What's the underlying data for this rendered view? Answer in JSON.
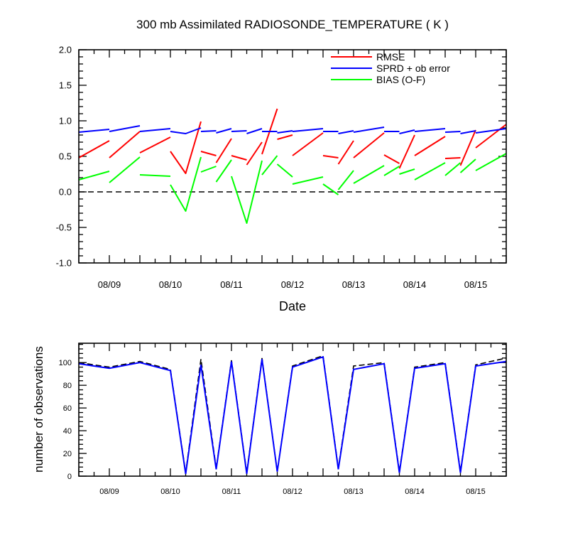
{
  "chart_data": [
    {
      "type": "line",
      "title": "300 mb Assimilated RADIOSONDE_TEMPERATURE ( K )",
      "xlabel": "Date",
      "ylabel": "",
      "xlim": [
        8.5,
        15.5
      ],
      "ylim": [
        -1.0,
        2.0
      ],
      "yticks": [
        -1.0,
        -0.5,
        0.0,
        0.5,
        1.0,
        1.5,
        2.0
      ],
      "ytick_labels": [
        "-1.0",
        "-0.5",
        "0.0",
        "0.5",
        "1.0",
        "1.5",
        "2.0"
      ],
      "xticks": [
        9,
        10,
        11,
        12,
        13,
        14,
        15
      ],
      "xtick_labels": [
        "08/09",
        "08/10",
        "08/11",
        "08/12",
        "08/13",
        "08/14",
        "08/15"
      ],
      "reference_line": {
        "y": 0,
        "style": "dashed"
      },
      "legend_position": "top-right",
      "series": [
        {
          "name": "RMSE",
          "color": "#ff0000",
          "segments": [
            [
              [
                8.5,
                0.48
              ],
              [
                9.0,
                0.72
              ]
            ],
            [
              [
                9.0,
                0.48
              ],
              [
                9.5,
                0.85
              ]
            ],
            [
              [
                9.5,
                0.55
              ],
              [
                10.0,
                0.77
              ]
            ],
            [
              [
                10.0,
                0.57
              ],
              [
                10.25,
                0.26
              ],
              [
                10.5,
                0.99
              ]
            ],
            [
              [
                10.5,
                0.57
              ],
              [
                10.75,
                0.51
              ]
            ],
            [
              [
                10.75,
                0.41
              ],
              [
                11.0,
                0.75
              ]
            ],
            [
              [
                11.0,
                0.51
              ],
              [
                11.25,
                0.45
              ]
            ],
            [
              [
                11.25,
                0.38
              ],
              [
                11.5,
                0.7
              ]
            ],
            [
              [
                11.5,
                0.53
              ],
              [
                11.75,
                1.17
              ]
            ],
            [
              [
                11.75,
                0.74
              ],
              [
                12.0,
                0.8
              ]
            ],
            [
              [
                12.0,
                0.51
              ],
              [
                12.5,
                0.83
              ]
            ],
            [
              [
                12.5,
                0.51
              ],
              [
                12.75,
                0.48
              ]
            ],
            [
              [
                12.75,
                0.39
              ],
              [
                13.0,
                0.72
              ]
            ],
            [
              [
                13.0,
                0.48
              ],
              [
                13.5,
                0.83
              ]
            ],
            [
              [
                13.5,
                0.52
              ],
              [
                13.75,
                0.4
              ]
            ],
            [
              [
                13.75,
                0.33
              ],
              [
                14.0,
                0.8
              ]
            ],
            [
              [
                14.0,
                0.51
              ],
              [
                14.5,
                0.78
              ]
            ],
            [
              [
                14.5,
                0.47
              ],
              [
                14.75,
                0.48
              ]
            ],
            [
              [
                14.75,
                0.37
              ],
              [
                15.0,
                0.87
              ]
            ],
            [
              [
                15.0,
                0.62
              ],
              [
                15.5,
                0.95
              ]
            ]
          ]
        },
        {
          "name": "SPRD + ob error",
          "color": "#0000ff",
          "segments": [
            [
              [
                8.5,
                0.84
              ],
              [
                9.0,
                0.88
              ]
            ],
            [
              [
                9.0,
                0.85
              ],
              [
                9.5,
                0.93
              ]
            ],
            [
              [
                9.5,
                0.85
              ],
              [
                10.0,
                0.89
              ]
            ],
            [
              [
                10.0,
                0.85
              ],
              [
                10.25,
                0.82
              ],
              [
                10.5,
                0.9
              ]
            ],
            [
              [
                10.5,
                0.85
              ],
              [
                10.75,
                0.86
              ]
            ],
            [
              [
                10.75,
                0.83
              ],
              [
                11.0,
                0.89
              ]
            ],
            [
              [
                11.0,
                0.85
              ],
              [
                11.25,
                0.86
              ]
            ],
            [
              [
                11.25,
                0.82
              ],
              [
                11.5,
                0.89
              ]
            ],
            [
              [
                11.5,
                0.85
              ],
              [
                11.75,
                0.85
              ]
            ],
            [
              [
                11.75,
                0.83
              ],
              [
                12.0,
                0.86
              ]
            ],
            [
              [
                12.0,
                0.85
              ],
              [
                12.5,
                0.89
              ]
            ],
            [
              [
                12.5,
                0.85
              ],
              [
                12.75,
                0.85
              ]
            ],
            [
              [
                12.75,
                0.82
              ],
              [
                13.0,
                0.86
              ]
            ],
            [
              [
                13.0,
                0.84
              ],
              [
                13.5,
                0.91
              ]
            ],
            [
              [
                13.5,
                0.85
              ],
              [
                13.75,
                0.85
              ]
            ],
            [
              [
                13.75,
                0.82
              ],
              [
                14.0,
                0.87
              ]
            ],
            [
              [
                14.0,
                0.85
              ],
              [
                14.5,
                0.89
              ]
            ],
            [
              [
                14.5,
                0.84
              ],
              [
                14.75,
                0.85
              ]
            ],
            [
              [
                14.75,
                0.82
              ],
              [
                15.0,
                0.86
              ]
            ],
            [
              [
                15.0,
                0.83
              ],
              [
                15.5,
                0.89
              ]
            ]
          ]
        },
        {
          "name": "BIAS (O-F)",
          "color": "#00ff00",
          "segments": [
            [
              [
                8.5,
                0.17
              ],
              [
                9.0,
                0.29
              ]
            ],
            [
              [
                9.0,
                0.13
              ],
              [
                9.5,
                0.49
              ]
            ],
            [
              [
                9.5,
                0.24
              ],
              [
                10.0,
                0.22
              ]
            ],
            [
              [
                10.0,
                0.1
              ],
              [
                10.25,
                -0.27
              ],
              [
                10.5,
                0.49
              ]
            ],
            [
              [
                10.5,
                0.28
              ],
              [
                10.75,
                0.36
              ]
            ],
            [
              [
                10.75,
                0.14
              ],
              [
                11.0,
                0.45
              ]
            ],
            [
              [
                11.0,
                0.22
              ],
              [
                11.25,
                -0.44
              ],
              [
                11.5,
                0.44
              ]
            ],
            [
              [
                11.5,
                0.24
              ],
              [
                11.75,
                0.51
              ]
            ],
            [
              [
                11.75,
                0.39
              ],
              [
                12.0,
                0.21
              ]
            ],
            [
              [
                12.0,
                0.11
              ],
              [
                12.5,
                0.21
              ]
            ],
            [
              [
                12.5,
                0.11
              ],
              [
                12.75,
                -0.04
              ]
            ],
            [
              [
                12.75,
                0.03
              ],
              [
                13.0,
                0.3
              ]
            ],
            [
              [
                13.0,
                0.12
              ],
              [
                13.5,
                0.37
              ]
            ],
            [
              [
                13.5,
                0.23
              ],
              [
                13.75,
                0.36
              ]
            ],
            [
              [
                13.75,
                0.25
              ],
              [
                14.0,
                0.32
              ]
            ],
            [
              [
                14.0,
                0.17
              ],
              [
                14.5,
                0.41
              ]
            ],
            [
              [
                14.5,
                0.23
              ],
              [
                14.75,
                0.41
              ]
            ],
            [
              [
                14.75,
                0.27
              ],
              [
                15.0,
                0.46
              ]
            ],
            [
              [
                15.0,
                0.3
              ],
              [
                15.5,
                0.54
              ]
            ]
          ]
        }
      ]
    },
    {
      "type": "line",
      "title": "",
      "xlabel": "",
      "ylabel": "number of observations",
      "xlim": [
        8.5,
        15.5
      ],
      "ylim": [
        0,
        117
      ],
      "yticks": [
        0,
        20,
        40,
        60,
        80,
        100
      ],
      "ytick_labels": [
        "0",
        "20",
        "40",
        "60",
        "80",
        "100"
      ],
      "xticks": [
        9,
        10,
        11,
        12,
        13,
        14,
        15
      ],
      "xtick_labels": [
        "08/09",
        "08/10",
        "08/11",
        "08/12",
        "08/13",
        "08/14",
        "08/15"
      ],
      "series": [
        {
          "color": "#000000",
          "style": "dashed",
          "x": [
            8.5,
            9.0,
            9.5,
            10.0,
            10.25,
            10.5,
            10.75,
            11.0,
            11.25,
            11.5,
            11.75,
            12.0,
            12.5,
            12.75,
            13.0,
            13.5,
            13.75,
            14.0,
            14.5,
            14.75,
            15.0,
            15.5
          ],
          "y": [
            100,
            96,
            101,
            94,
            3,
            103,
            7,
            102,
            3,
            104,
            4,
            97,
            106,
            7,
            97,
            100,
            4,
            96,
            100,
            4,
            98,
            104
          ]
        },
        {
          "color": "#0000ff",
          "style": "solid",
          "x": [
            8.5,
            9.0,
            9.5,
            10.0,
            10.25,
            10.5,
            10.75,
            11.0,
            11.25,
            11.5,
            11.75,
            12.0,
            12.5,
            12.75,
            13.0,
            13.5,
            13.75,
            14.0,
            14.5,
            14.75,
            15.0,
            15.5
          ],
          "y": [
            99,
            95,
            100,
            93,
            2,
            98,
            6,
            101,
            2,
            103,
            4,
            96,
            105,
            6,
            94,
            99,
            3,
            95,
            99,
            3,
            97,
            101
          ]
        }
      ]
    }
  ]
}
